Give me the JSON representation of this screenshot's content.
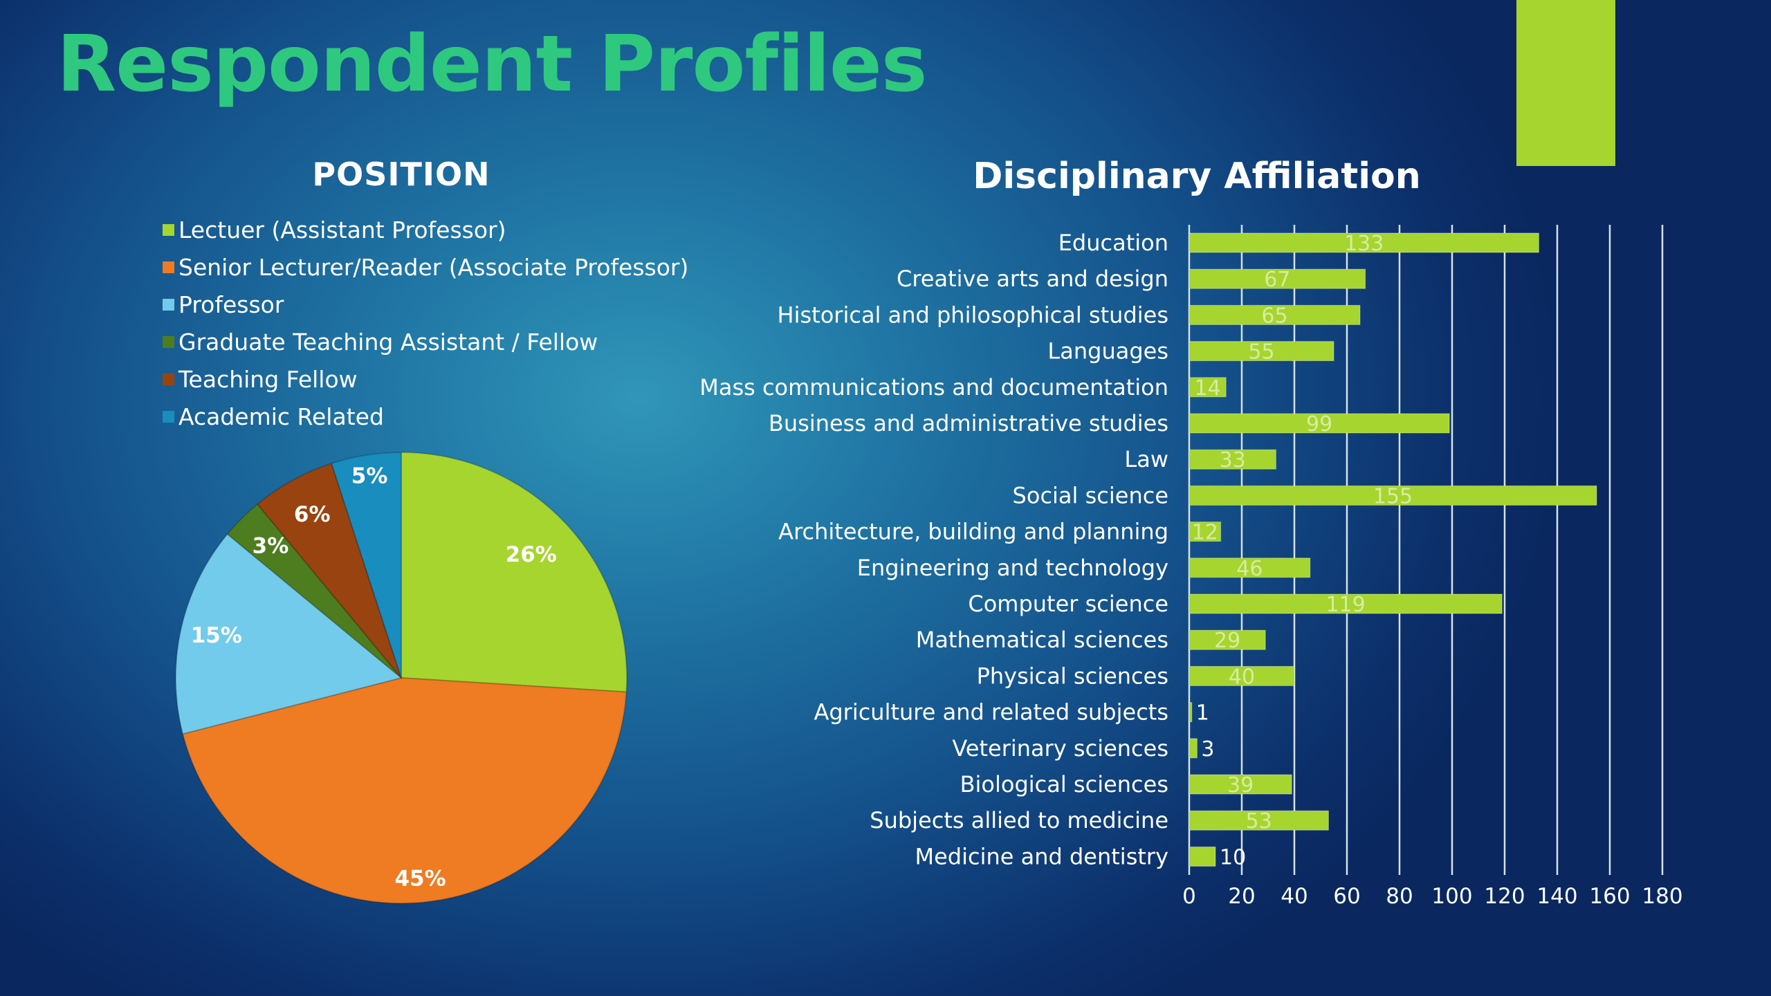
{
  "title": "Respondent Profiles",
  "colors": {
    "accent_block": "#a6d52f",
    "title": "#2fc87f",
    "bar_fill": "#a6d52f",
    "gridline": "#d6e2ec"
  },
  "chart_data": [
    {
      "type": "pie",
      "title": "POSITION",
      "legend_placement": "top",
      "categories": [
        "Lectuer (Assistant Professor)",
        "Senior Lecturer/Reader (Associate Professor)",
        "Professor",
        "Graduate Teaching Assistant / Fellow",
        "Teaching Fellow",
        "Academic Related"
      ],
      "values": [
        26,
        45,
        15,
        3,
        6,
        5
      ],
      "data_labels": [
        "26%",
        "45%",
        "15%",
        "3%",
        "6%",
        "5%"
      ],
      "colors": [
        "#a6d52f",
        "#ef7b22",
        "#72cbea",
        "#4e7d1f",
        "#994310",
        "#198dbd"
      ]
    },
    {
      "type": "bar",
      "orientation": "horizontal",
      "title": "Disciplinary Affiliation",
      "categories": [
        "Education",
        "Creative arts and design",
        "Historical and philosophical studies",
        "Languages",
        "Mass communications and documentation",
        "Business and administrative studies",
        "Law",
        "Social science",
        "Architecture, building and planning",
        "Engineering and technology",
        "Computer science",
        "Mathematical sciences",
        "Physical sciences",
        "Agriculture and related subjects",
        "Veterinary sciences",
        "Biological sciences",
        "Subjects allied to medicine",
        "Medicine and dentistry"
      ],
      "values": [
        133,
        67,
        65,
        55,
        14,
        99,
        33,
        155,
        12,
        46,
        119,
        29,
        40,
        1,
        3,
        39,
        53,
        10
      ],
      "xlim": [
        0,
        180
      ],
      "ticks": [
        0,
        20,
        40,
        60,
        80,
        100,
        120,
        140,
        160,
        180
      ],
      "grid": true,
      "legend": false
    }
  ]
}
